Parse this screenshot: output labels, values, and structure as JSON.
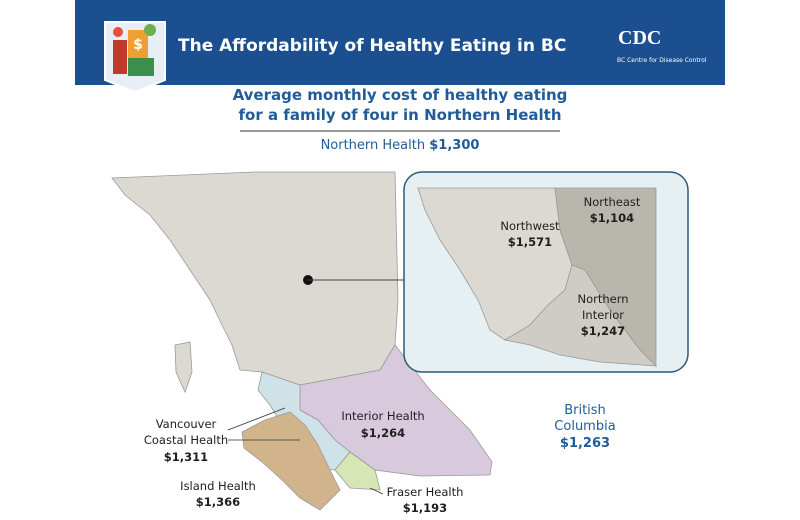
{
  "header": {
    "title": "The Affordability of Healthy Eating in BC",
    "logo": "BC Centre for Disease Control"
  },
  "subtitle": [
    "Average monthly cost of healthy eating",
    "for a family of four in Northern Health"
  ],
  "summary": {
    "label": "Northern Health",
    "value": "$1,300"
  },
  "inset": [
    {
      "name": [
        "Northeast"
      ],
      "value": "$1,104"
    },
    {
      "name": [
        "Northwest"
      ],
      "value": "$1,571"
    },
    {
      "name": [
        "Northern",
        "Interior"
      ],
      "value": "$1,247"
    }
  ],
  "regions": [
    {
      "name": [
        "Vancouver",
        "Coastal Health"
      ],
      "value": "$1,311"
    },
    {
      "name": [
        "Island Health"
      ],
      "value": "$1,366"
    },
    {
      "name": [
        "Interior Health"
      ],
      "value": "$1,264"
    },
    {
      "name": [
        "Fraser Health"
      ],
      "value": "$1,193"
    }
  ],
  "province": {
    "name": [
      "British",
      "Columbia"
    ],
    "value": "$1,263"
  }
}
